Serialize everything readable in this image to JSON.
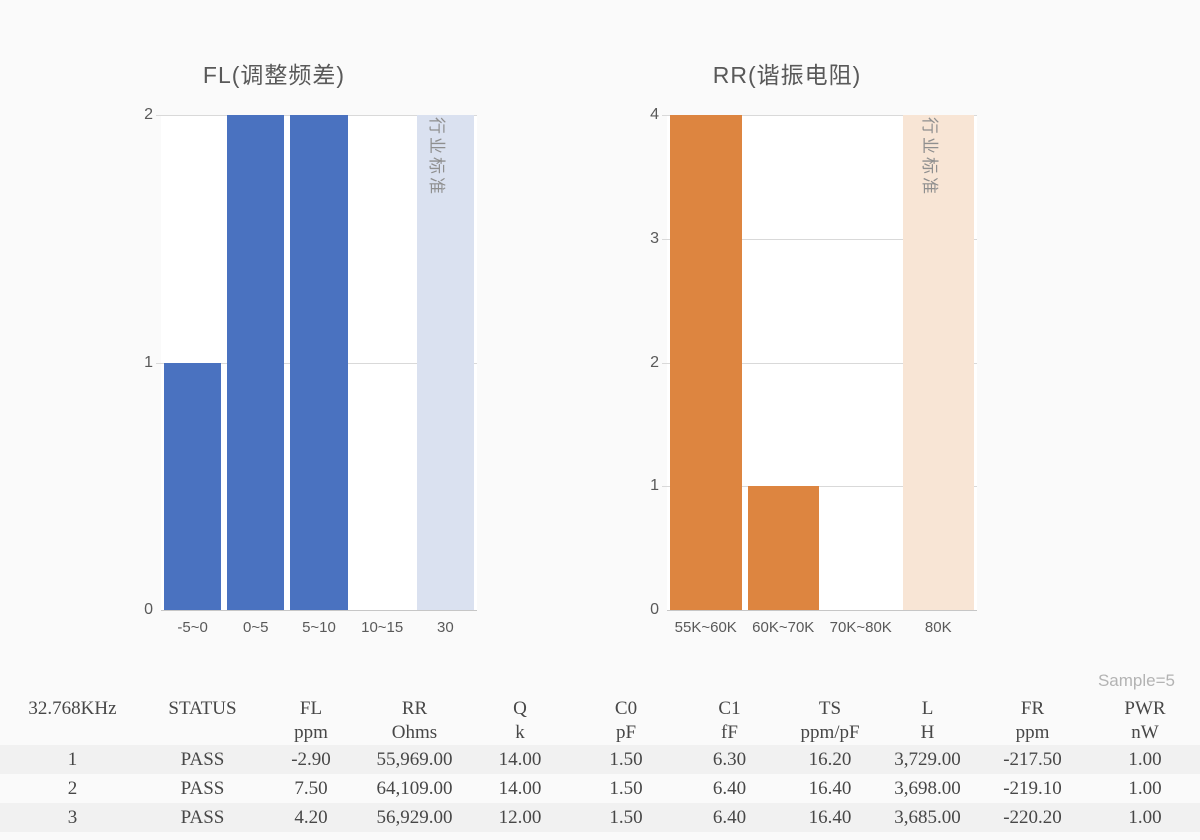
{
  "chart_data": [
    {
      "type": "bar",
      "title": "FL(调整频差)",
      "categories": [
        "-5~0",
        "0~5",
        "5~10",
        "10~15",
        "30"
      ],
      "values": [
        1,
        2,
        2,
        0,
        0
      ],
      "standard_bar": {
        "index": 4,
        "category": "30",
        "label": "行业标准",
        "height": "full"
      },
      "ylim": [
        0,
        2
      ],
      "yticks": [
        0,
        1,
        2
      ],
      "bar_color": "#4a72c0",
      "standard_color": "#dae1f0",
      "grid": true,
      "legend": "none",
      "xlabel": "",
      "ylabel": ""
    },
    {
      "type": "bar",
      "title": "RR(谐振电阻)",
      "categories": [
        "55K~60K",
        "60K~70K",
        "70K~80K",
        "80K"
      ],
      "values": [
        4,
        1,
        0,
        0
      ],
      "standard_bar": {
        "index": 3,
        "category": "80K",
        "label": "行业标准",
        "height": "full"
      },
      "ylim": [
        0,
        4
      ],
      "yticks": [
        0,
        1,
        2,
        3,
        4
      ],
      "bar_color": "#dd8540",
      "standard_color": "#f8e5d5",
      "grid": true,
      "legend": "none",
      "xlabel": "",
      "ylabel": ""
    }
  ],
  "table": {
    "sample_note": "Sample=5",
    "headers": [
      {
        "name": "32.768KHz",
        "unit": ""
      },
      {
        "name": "STATUS",
        "unit": ""
      },
      {
        "name": "FL",
        "unit": "ppm"
      },
      {
        "name": "RR",
        "unit": "Ohms"
      },
      {
        "name": "Q",
        "unit": "k"
      },
      {
        "name": "C0",
        "unit": "pF"
      },
      {
        "name": "C1",
        "unit": "fF"
      },
      {
        "name": "TS",
        "unit": "ppm/pF"
      },
      {
        "name": "L",
        "unit": "H"
      },
      {
        "name": "FR",
        "unit": "ppm"
      },
      {
        "name": "PWR",
        "unit": "nW"
      }
    ],
    "rows": [
      [
        "1",
        "PASS",
        "-2.90",
        "55,969.00",
        "14.00",
        "1.50",
        "6.30",
        "16.20",
        "3,729.00",
        "-217.50",
        "1.00"
      ],
      [
        "2",
        "PASS",
        "7.50",
        "64,109.00",
        "14.00",
        "1.50",
        "6.40",
        "16.40",
        "3,698.00",
        "-219.10",
        "1.00"
      ],
      [
        "3",
        "PASS",
        "4.20",
        "56,929.00",
        "12.00",
        "1.50",
        "6.40",
        "16.40",
        "3,685.00",
        "-220.20",
        "1.00"
      ]
    ]
  }
}
